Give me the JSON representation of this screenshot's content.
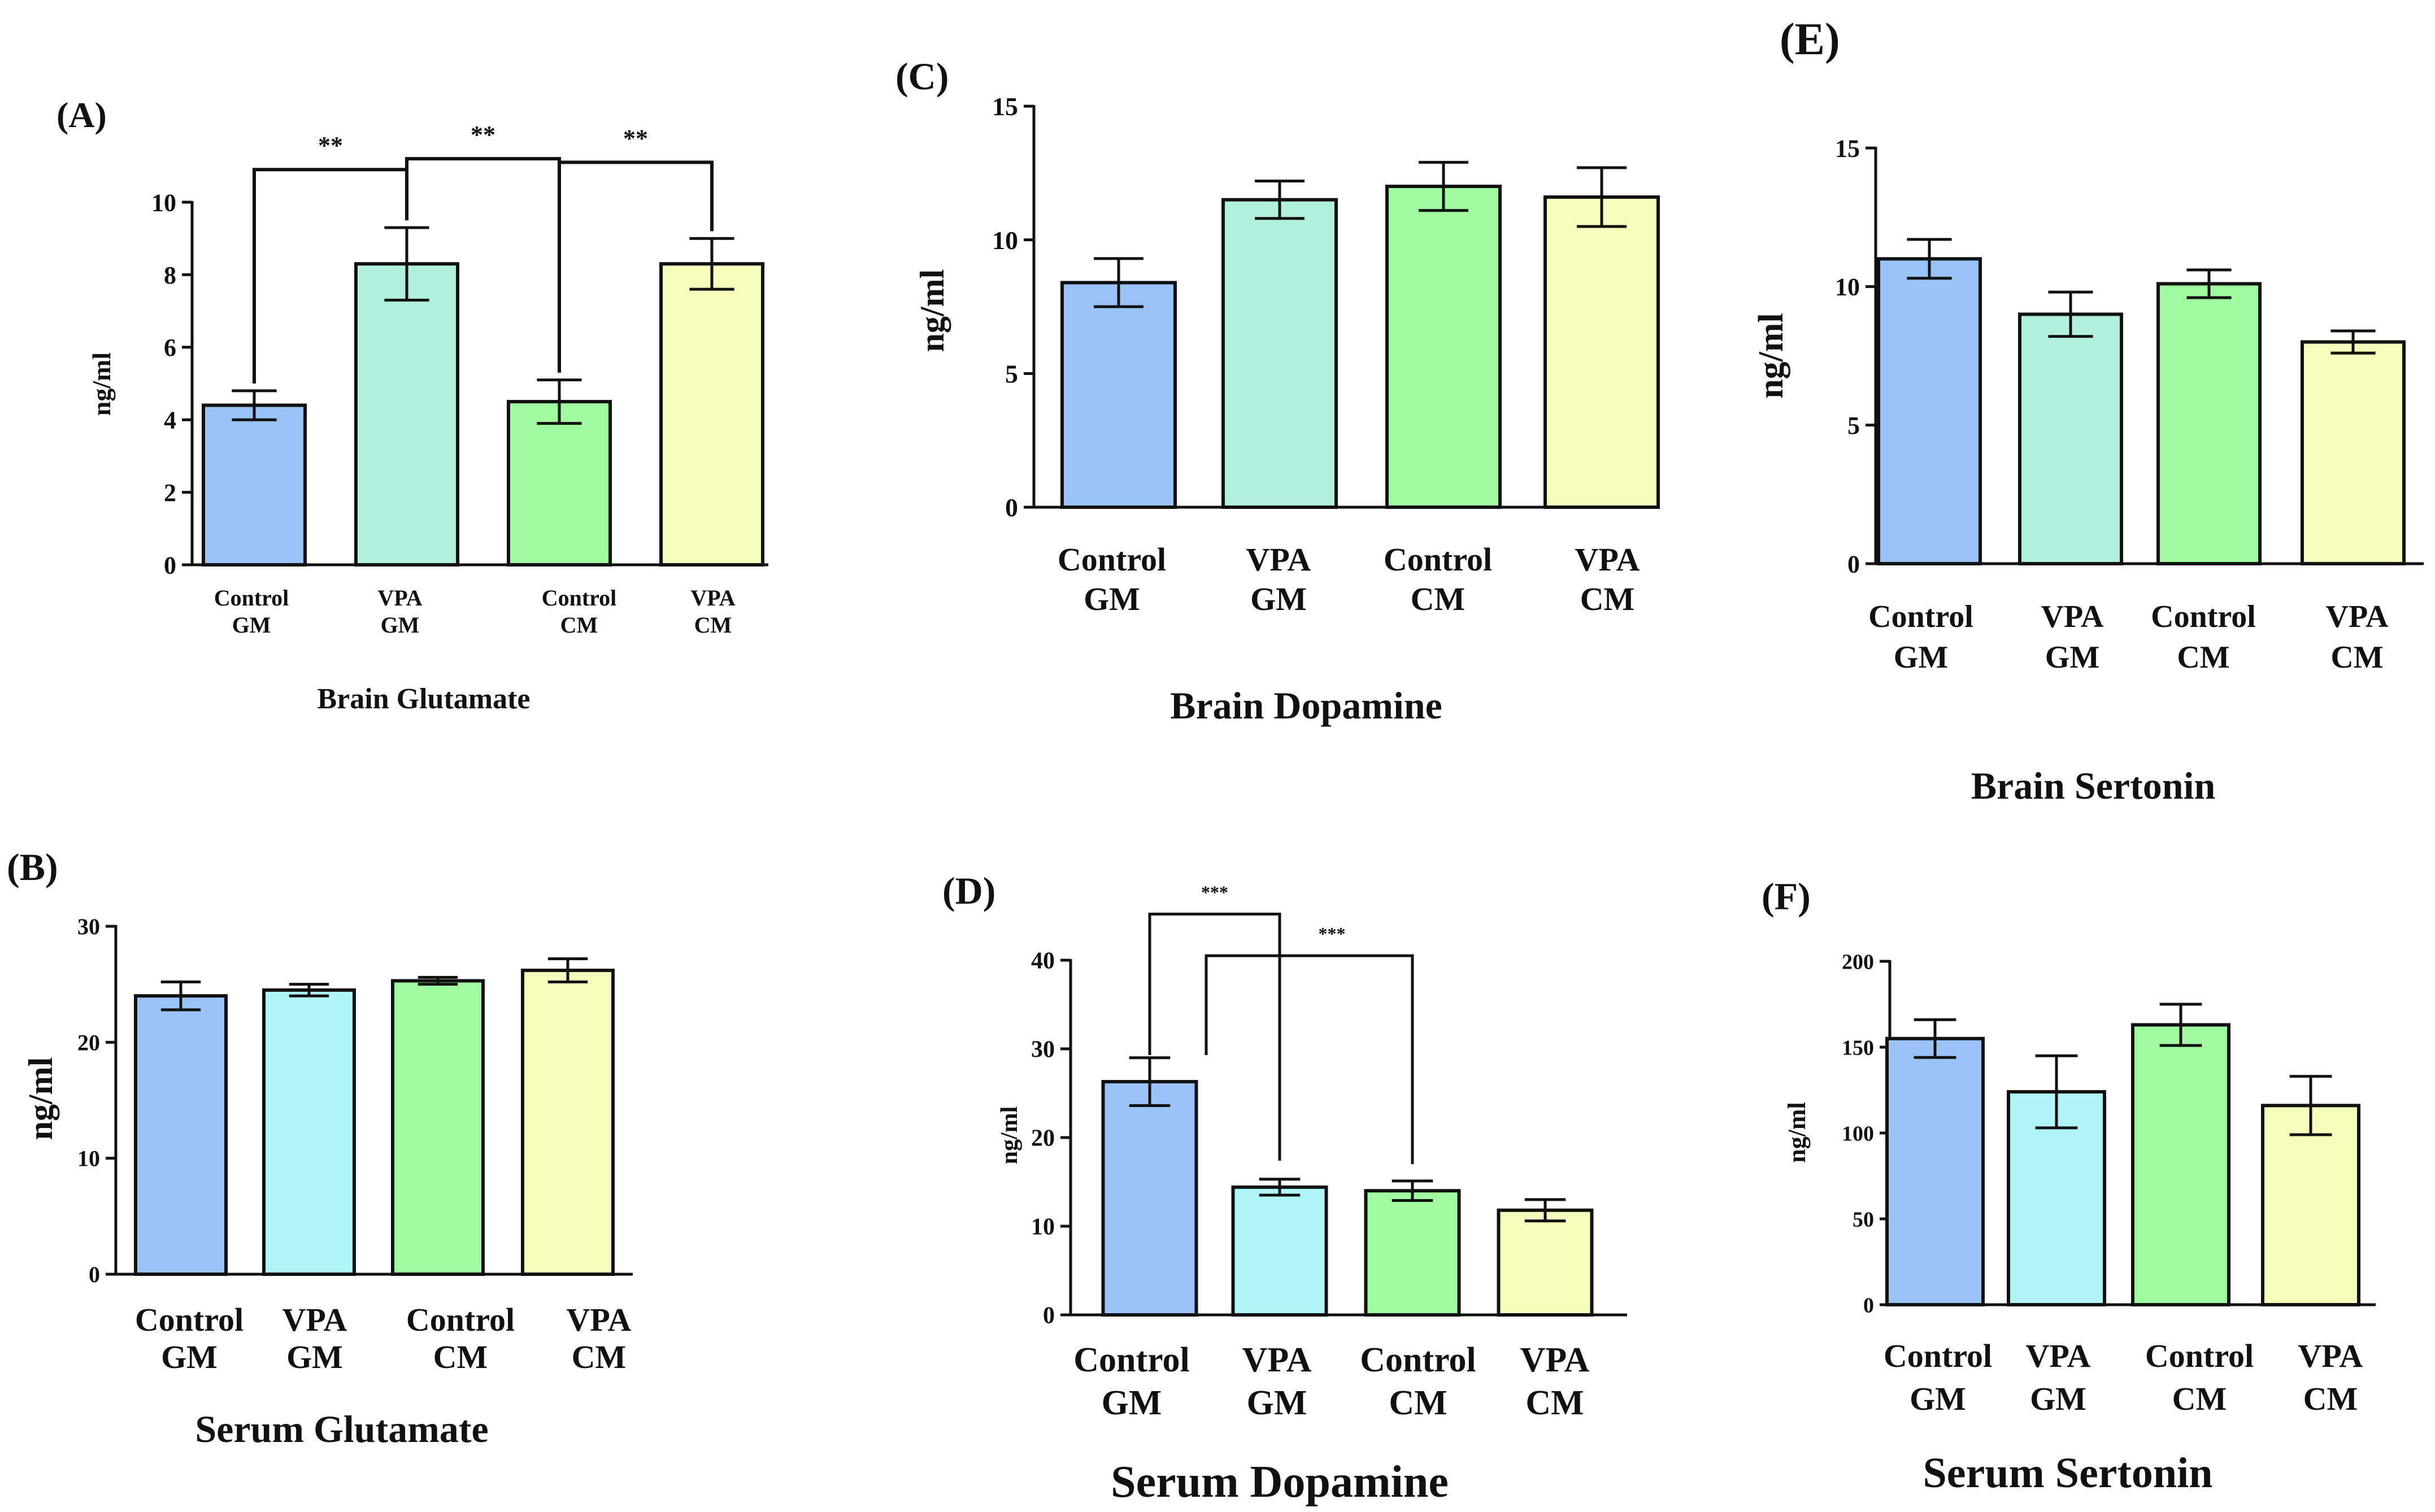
{
  "figure": {
    "description_free": true
  },
  "chart_data": [
    {
      "panel": "(A)",
      "type": "bar",
      "title": "Brain Glutamate",
      "xlabel": "",
      "ylabel": "ng/ml",
      "ylim": [
        0,
        10
      ],
      "yticks": [
        0,
        2,
        4,
        6,
        8,
        10
      ],
      "categories": [
        [
          "Control",
          "GM"
        ],
        [
          "VPA",
          "GM"
        ],
        [
          "Control",
          "CM"
        ],
        [
          "VPA",
          "CM"
        ]
      ],
      "values": [
        4.4,
        8.3,
        4.5,
        8.3
      ],
      "errors": [
        0.4,
        1.0,
        0.6,
        0.7
      ],
      "colors": [
        "#99c2f7",
        "#b0f0dc",
        "#a0fa9f",
        "#f6fcbc"
      ],
      "significance": [
        {
          "from": 0,
          "to": 1,
          "label": "**",
          "level": 10.9
        },
        {
          "from": 1,
          "to": 2,
          "label": "**",
          "level": 11.2
        },
        {
          "from": 2,
          "to": 3,
          "label": "**",
          "level": 11.1
        }
      ]
    },
    {
      "panel": "(B)",
      "type": "bar",
      "title": "Serum Glutamate",
      "xlabel": "",
      "ylabel": "ng/ml",
      "ylim": [
        0,
        30
      ],
      "yticks": [
        0,
        10,
        20,
        30
      ],
      "categories": [
        [
          "Control",
          "GM"
        ],
        [
          "VPA",
          "GM"
        ],
        [
          "Control",
          "CM"
        ],
        [
          "VPA",
          "CM"
        ]
      ],
      "values": [
        24.0,
        24.5,
        25.3,
        26.2
      ],
      "errors": [
        1.2,
        0.5,
        0.3,
        1.0
      ],
      "colors": [
        "#99c2f7",
        "#b0f6f9",
        "#a0fa9f",
        "#f6fcbc"
      ],
      "significance": []
    },
    {
      "panel": "(C)",
      "type": "bar",
      "title": "Brain Dopamine",
      "xlabel": "",
      "ylabel": "ng/ml",
      "ylim": [
        0,
        15
      ],
      "yticks": [
        0,
        5,
        10,
        15
      ],
      "categories": [
        [
          "Control",
          "GM"
        ],
        [
          "VPA",
          "GM"
        ],
        [
          "Control",
          "CM"
        ],
        [
          "VPA",
          "CM"
        ]
      ],
      "values": [
        8.4,
        11.5,
        12.0,
        11.6
      ],
      "errors": [
        0.9,
        0.7,
        0.9,
        1.1
      ],
      "colors": [
        "#99c2f7",
        "#b0f0dc",
        "#a0fa9f",
        "#f6fcbc"
      ],
      "significance": []
    },
    {
      "panel": "(D)",
      "type": "bar",
      "title": "Serum Dopamine",
      "xlabel": "",
      "ylabel": "ng/ml",
      "ylim": [
        0,
        40
      ],
      "yticks": [
        0,
        10,
        20,
        30,
        40
      ],
      "categories": [
        [
          "Control",
          "GM"
        ],
        [
          "VPA",
          "GM"
        ],
        [
          "Control",
          "CM"
        ],
        [
          "VPA",
          "CM"
        ]
      ],
      "values": [
        26.3,
        14.4,
        14.0,
        11.8
      ],
      "errors": [
        2.7,
        0.9,
        1.1,
        1.2
      ],
      "colors": [
        "#99c2f7",
        "#b0f6f9",
        "#a0fa9f",
        "#f6fcbc"
      ],
      "significance": [
        {
          "from": 0,
          "to": 1,
          "label": "***",
          "level": 45.2
        },
        {
          "from": 0,
          "to": 2,
          "label": "***",
          "level": 40.5
        }
      ]
    },
    {
      "panel": "(E)",
      "type": "bar",
      "title": "Brain Sertonin",
      "xlabel": "",
      "ylabel": "ng/ml",
      "ylim": [
        0,
        15
      ],
      "yticks": [
        0,
        5,
        10,
        15
      ],
      "categories": [
        [
          "Control",
          "GM"
        ],
        [
          "VPA",
          "GM"
        ],
        [
          "Control",
          "CM"
        ],
        [
          "VPA",
          "CM"
        ]
      ],
      "values": [
        11.0,
        9.0,
        10.1,
        8.0
      ],
      "errors": [
        0.7,
        0.8,
        0.5,
        0.4
      ],
      "colors": [
        "#99c2f7",
        "#b0f0dc",
        "#a0fa9f",
        "#f6fcbc"
      ],
      "significance": []
    },
    {
      "panel": "(F)",
      "type": "bar",
      "title": "Serum Sertonin",
      "xlabel": "",
      "ylabel": "ng/ml",
      "ylim": [
        0,
        200
      ],
      "yticks": [
        0,
        50,
        100,
        150,
        200
      ],
      "categories": [
        [
          "Control",
          "GM"
        ],
        [
          "VPA",
          "GM"
        ],
        [
          "Control",
          "CM"
        ],
        [
          "VPA",
          "CM"
        ]
      ],
      "values": [
        155,
        124,
        163,
        116
      ],
      "errors": [
        11,
        21,
        12,
        17
      ],
      "colors": [
        "#99c2f7",
        "#b0f6f9",
        "#a0fa9f",
        "#f6fcbc"
      ],
      "significance": []
    }
  ]
}
